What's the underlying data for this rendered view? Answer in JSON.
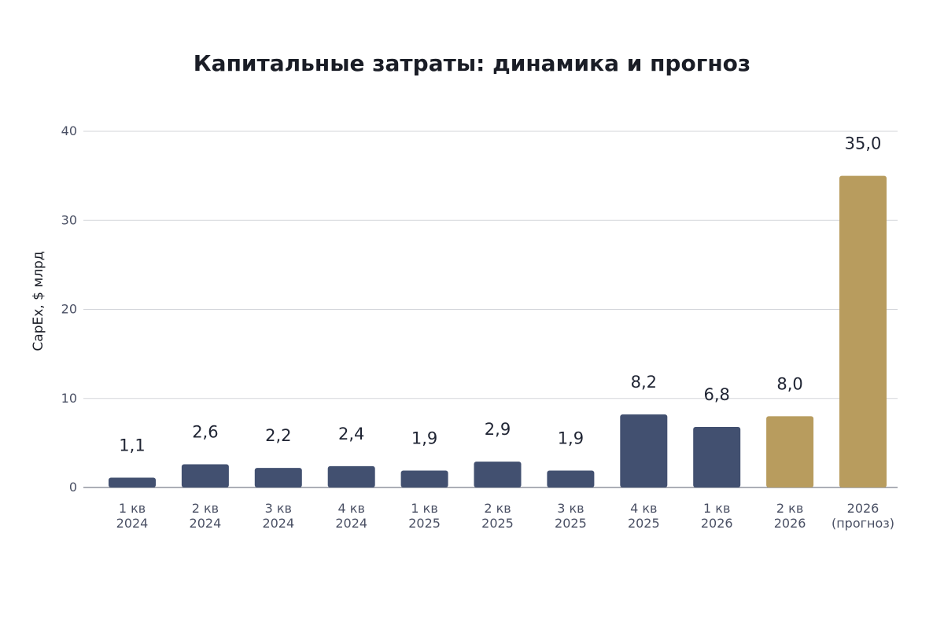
{
  "chart_data": {
    "type": "bar",
    "title": "Капитальные затраты: динамика и прогноз",
    "xlabel": "",
    "ylabel": "CapEx,  $ млрд",
    "ylim": [
      0,
      40
    ],
    "yticks": [
      "0",
      "10",
      "20",
      "30",
      "40"
    ],
    "grid": true,
    "categories": [
      [
        "1 кв",
        "2024"
      ],
      [
        "2 кв",
        "2024"
      ],
      [
        "3 кв",
        "2024"
      ],
      [
        "4 кв",
        "2024"
      ],
      [
        "1 кв",
        "2025"
      ],
      [
        "2 кв",
        "2025"
      ],
      [
        "3 кв",
        "2025"
      ],
      [
        "4 кв",
        "2025"
      ],
      [
        "1 кв",
        "2026"
      ],
      [
        "2 кв",
        "2026"
      ],
      [
        "2026",
        "(прогноз)"
      ]
    ],
    "values": [
      1.1,
      2.6,
      2.2,
      2.4,
      1.9,
      2.9,
      1.9,
      8.2,
      6.8,
      8.0,
      35.0
    ],
    "value_labels": [
      "1,1",
      "2,6",
      "2,2",
      "2,4",
      "1,9",
      "2,9",
      "1,9",
      "8,2",
      "6,8",
      "8,0",
      "35,0"
    ],
    "bar_colors": [
      "#425070",
      "#425070",
      "#425070",
      "#425070",
      "#425070",
      "#425070",
      "#425070",
      "#425070",
      "#425070",
      "#b89c5e",
      "#b89c5e"
    ]
  }
}
